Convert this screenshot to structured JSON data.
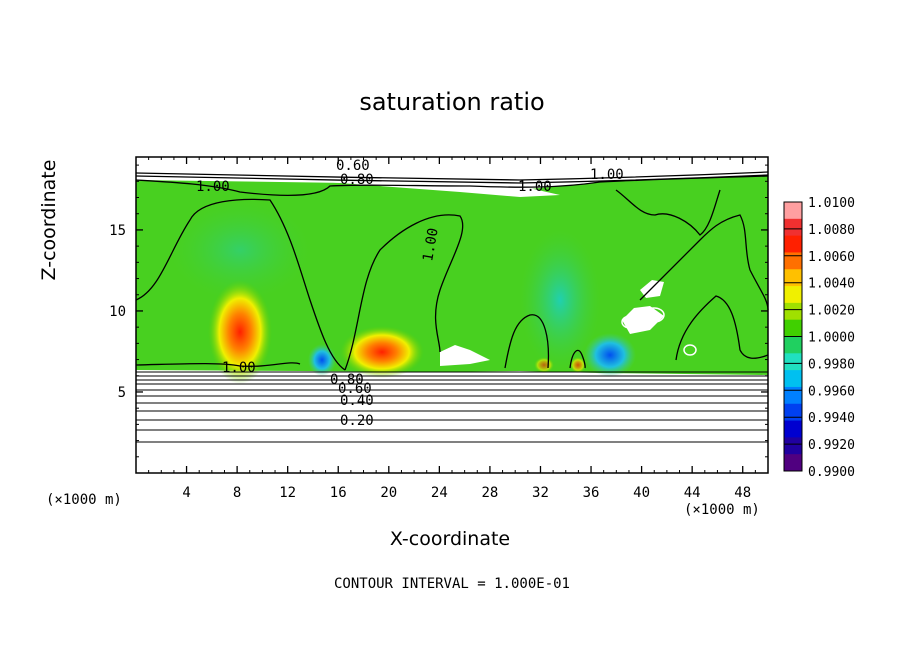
{
  "chart_data": {
    "type": "heatmap",
    "title": "saturation ratio",
    "xlabel": "X-coordinate",
    "ylabel": "Z-coordinate",
    "x_unit": "(×1000 m)",
    "footer": "CONTOUR INTERVAL = 1.000E-01",
    "xlim": [
      0,
      50
    ],
    "ylim": [
      0,
      19.5
    ],
    "x_ticks": [
      "4",
      "8",
      "12",
      "16",
      "20",
      "24",
      "28",
      "32",
      "36",
      "40",
      "44",
      "48"
    ],
    "y_ticks": [
      "5",
      "10",
      "15"
    ],
    "colorbar": {
      "labels": [
        "1.0100",
        "1.0080",
        "1.0060",
        "1.0040",
        "1.0020",
        "1.0000",
        "0.9980",
        "0.9960",
        "0.9940",
        "0.9920",
        "0.9900"
      ],
      "colors": [
        "#ff9fa0",
        "#f03030",
        "#ff2000",
        "#ff7000",
        "#ffc000",
        "#f0f000",
        "#a0e000",
        "#40d000",
        "#20d060",
        "#20e0c0",
        "#00c0f0",
        "#0080ff",
        "#0040f0",
        "#0000d0",
        "#2000a0",
        "#500080"
      ]
    },
    "contour_labels": [
      "0.60",
      "0.80",
      "1.00",
      "1.00",
      "1.00",
      "1.00",
      "1.00",
      "0.80",
      "0.60",
      "0.40",
      "0.20"
    ],
    "hotspots": [
      {
        "x": 8.3,
        "z": 8.5,
        "value": 1.0075
      },
      {
        "x": 19.5,
        "z": 7.3,
        "value": 1.0065
      },
      {
        "x": 15,
        "z": 7.0,
        "value": 0.994
      },
      {
        "x": 36.5,
        "z": 7.2,
        "value": 0.9945
      }
    ]
  }
}
